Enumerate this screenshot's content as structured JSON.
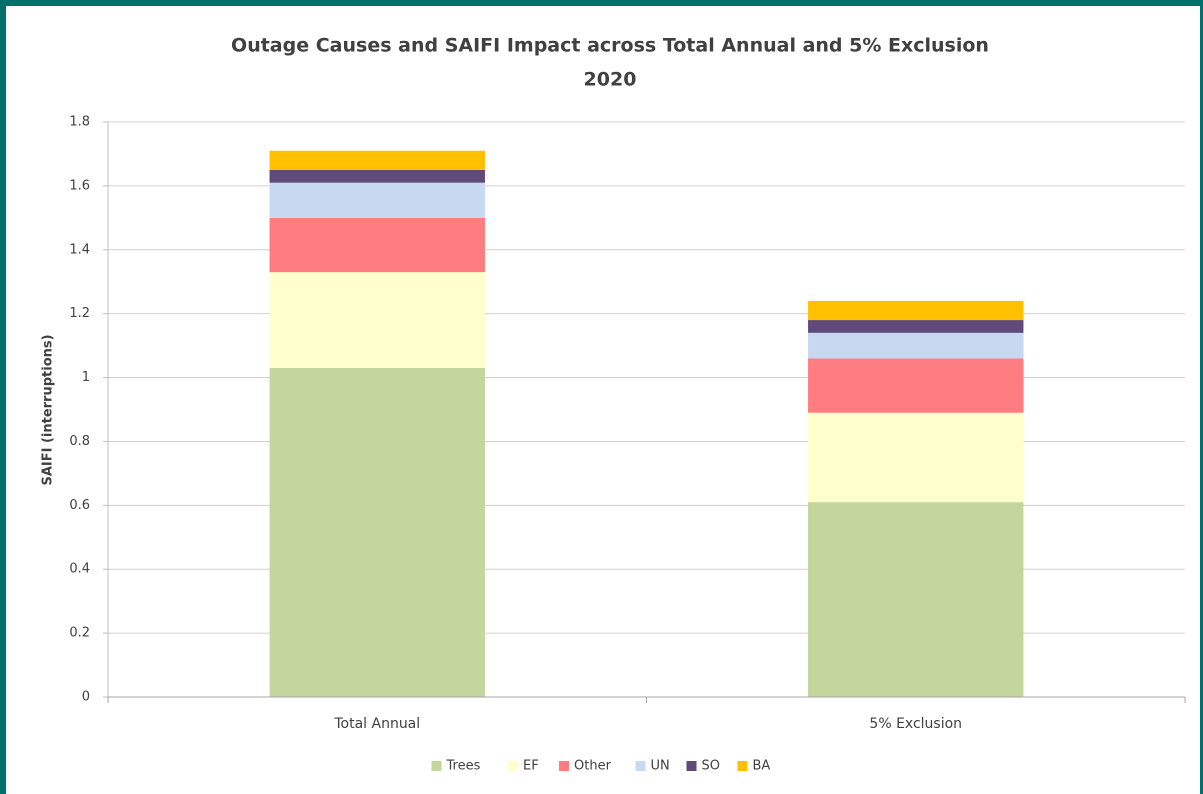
{
  "chart_data": {
    "type": "stacked_bar",
    "title": [
      "Outage Causes and SAIFI Impact across Total Annual and 5% Exclusion",
      "2020"
    ],
    "y_label": "SAIFI (interruptions)",
    "categories": [
      "Total Annual",
      "5% Exclusion"
    ],
    "series": [
      {
        "name": "Trees",
        "color": "#c3d69b",
        "values": [
          1.03,
          0.61
        ]
      },
      {
        "name": "EF",
        "color": "#ffffcc",
        "values": [
          0.3,
          0.28
        ]
      },
      {
        "name": "Other",
        "color": "#ff7c80",
        "values": [
          0.17,
          0.17
        ]
      },
      {
        "name": "UN",
        "color": "#c6d9f1",
        "values": [
          0.11,
          0.08
        ]
      },
      {
        "name": "SO",
        "color": "#604a7b",
        "values": [
          0.04,
          0.04
        ]
      },
      {
        "name": "BA",
        "color": "#ffc000",
        "values": [
          0.06,
          0.06
        ]
      }
    ],
    "ylim": [
      0,
      1.8
    ],
    "yticks": [
      0,
      0.2,
      0.4,
      0.6,
      0.8,
      1,
      1.2,
      1.4,
      1.6,
      1.8
    ],
    "grid": true,
    "legend": "bottom"
  }
}
